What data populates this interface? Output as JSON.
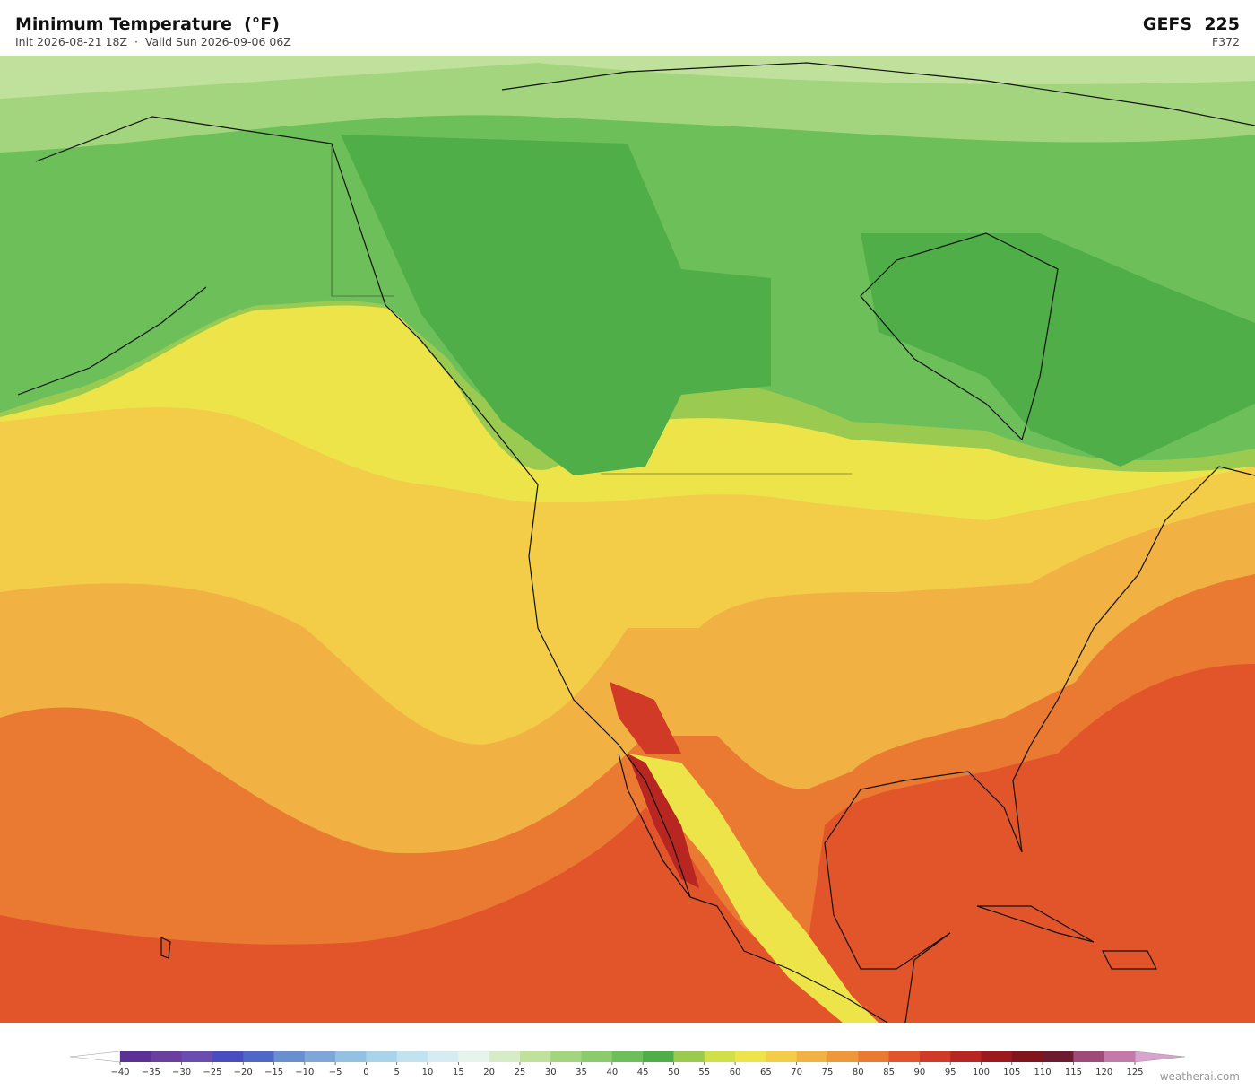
{
  "header": {
    "title": "Minimum Temperature  (°F)",
    "subtitle": "Init 2026-08-21 18Z  ·  Valid Sun 2026-09-06 06Z",
    "model": "GEFS  225",
    "forecast_hour": "F372"
  },
  "colorbar": {
    "ticks": [
      {
        "value": -40,
        "label": "−40"
      },
      {
        "value": -35,
        "label": "−35"
      },
      {
        "value": -30,
        "label": "−30"
      },
      {
        "value": -25,
        "label": "−25"
      },
      {
        "value": -20,
        "label": "−20"
      },
      {
        "value": -15,
        "label": "−15"
      },
      {
        "value": -10,
        "label": "−10"
      },
      {
        "value": -5,
        "label": "−5"
      },
      0,
      5,
      10,
      15,
      20,
      25,
      30,
      35,
      40,
      45,
      50,
      55,
      60,
      65,
      70,
      75,
      80,
      85,
      90,
      95,
      100,
      105,
      110,
      115,
      120,
      125
    ],
    "colors": [
      "#5b3196",
      "#6a3fa0",
      "#6a4db0",
      "#4a4dbf",
      "#4f68c8",
      "#6a8fd0",
      "#7ea6d8",
      "#94c0e2",
      "#a9d3ea",
      "#c2e2ef",
      "#d6ecf2",
      "#e6f4ec",
      "#d6ecc6",
      "#c0e19c",
      "#a3d57e",
      "#8acb6c",
      "#6dbf5a",
      "#4fae48",
      "#9acb50",
      "#cfe048",
      "#ede44a",
      "#f3cc48",
      "#f1b243",
      "#ef983a",
      "#ea7a32",
      "#e2552a",
      "#d03a26",
      "#b82622",
      "#9c1a1e",
      "#82141c",
      "#6e1a30",
      "#a04a78",
      "#c47aa8"
    ],
    "under_color": "#ffffff",
    "over_color": "#d9a3d0"
  },
  "credit": "weatherai.com"
}
